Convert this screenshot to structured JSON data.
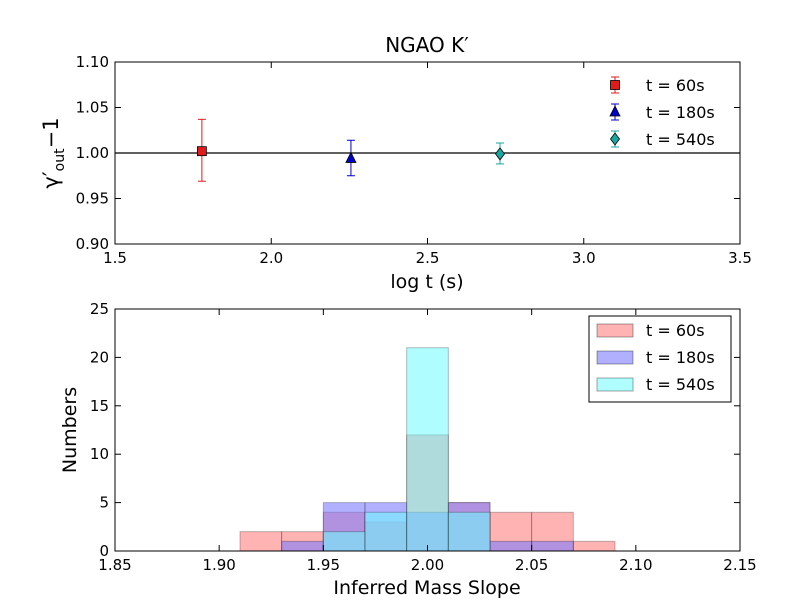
{
  "chart_data": [
    {
      "type": "scatter",
      "title": "NGAO K′",
      "xlabel": "log t (s)",
      "ylabel_parts": {
        "gamma": "γ",
        "prime": "′",
        "sub": "out",
        "tail": "−1"
      },
      "xlim": [
        1.5,
        3.5
      ],
      "ylim": [
        0.9,
        1.1
      ],
      "x_ticks": [
        "1.5",
        "2.0",
        "2.5",
        "3.0",
        "3.5"
      ],
      "y_ticks": [
        "0.90",
        "0.95",
        "1.00",
        "1.05",
        "1.10"
      ],
      "reference_line": 1.0,
      "legend_position": "top-right",
      "series": [
        {
          "name": "t = 60s",
          "marker": "square",
          "color": "#e31a1c",
          "x": 1.778,
          "y": 1.002,
          "yerr_low": 0.033,
          "yerr_high": 0.035
        },
        {
          "name": "t = 180s",
          "marker": "triangle",
          "color": "#0000cc",
          "x": 2.255,
          "y": 0.994,
          "yerr_low": 0.019,
          "yerr_high": 0.02
        },
        {
          "name": "t = 540s",
          "marker": "diamond",
          "color": "#1aa6a0",
          "x": 2.732,
          "y": 0.999,
          "yerr_low": 0.011,
          "yerr_high": 0.012
        }
      ]
    },
    {
      "type": "histogram",
      "xlabel": "Inferred Mass Slope",
      "ylabel": "Numbers",
      "xlim": [
        1.85,
        2.15
      ],
      "ylim": [
        0,
        25
      ],
      "x_ticks": [
        "1.85",
        "1.90",
        "1.95",
        "2.00",
        "2.05",
        "2.10",
        "2.15"
      ],
      "y_ticks": [
        "0",
        "5",
        "10",
        "15",
        "20",
        "25"
      ],
      "legend_position": "top-right",
      "series": [
        {
          "name": "t = 60s",
          "color": "#ff8080",
          "alpha": 0.6,
          "bins": [
            [
              1.91,
              1.93,
              2
            ],
            [
              1.93,
              1.95,
              2
            ],
            [
              1.95,
              1.97,
              4
            ],
            [
              1.97,
              1.99,
              3
            ],
            [
              1.99,
              2.01,
              12
            ],
            [
              2.01,
              2.03,
              5
            ],
            [
              2.03,
              2.05,
              4
            ],
            [
              2.05,
              2.07,
              4
            ],
            [
              2.07,
              2.09,
              1
            ]
          ]
        },
        {
          "name": "t = 180s",
          "color": "#7b7bff",
          "alpha": 0.6,
          "bins": [
            [
              1.93,
              1.95,
              1
            ],
            [
              1.95,
              1.97,
              5
            ],
            [
              1.97,
              1.99,
              5
            ],
            [
              1.99,
              2.01,
              4
            ],
            [
              2.01,
              2.03,
              5
            ],
            [
              2.03,
              2.05,
              1
            ],
            [
              2.05,
              2.07,
              1
            ]
          ]
        },
        {
          "name": "t = 540s",
          "color": "#6ffcff",
          "alpha": 0.55,
          "bins": [
            [
              1.95,
              1.97,
              2
            ],
            [
              1.97,
              1.99,
              4
            ],
            [
              1.99,
              2.01,
              21
            ],
            [
              2.01,
              2.03,
              4
            ]
          ]
        }
      ]
    }
  ]
}
